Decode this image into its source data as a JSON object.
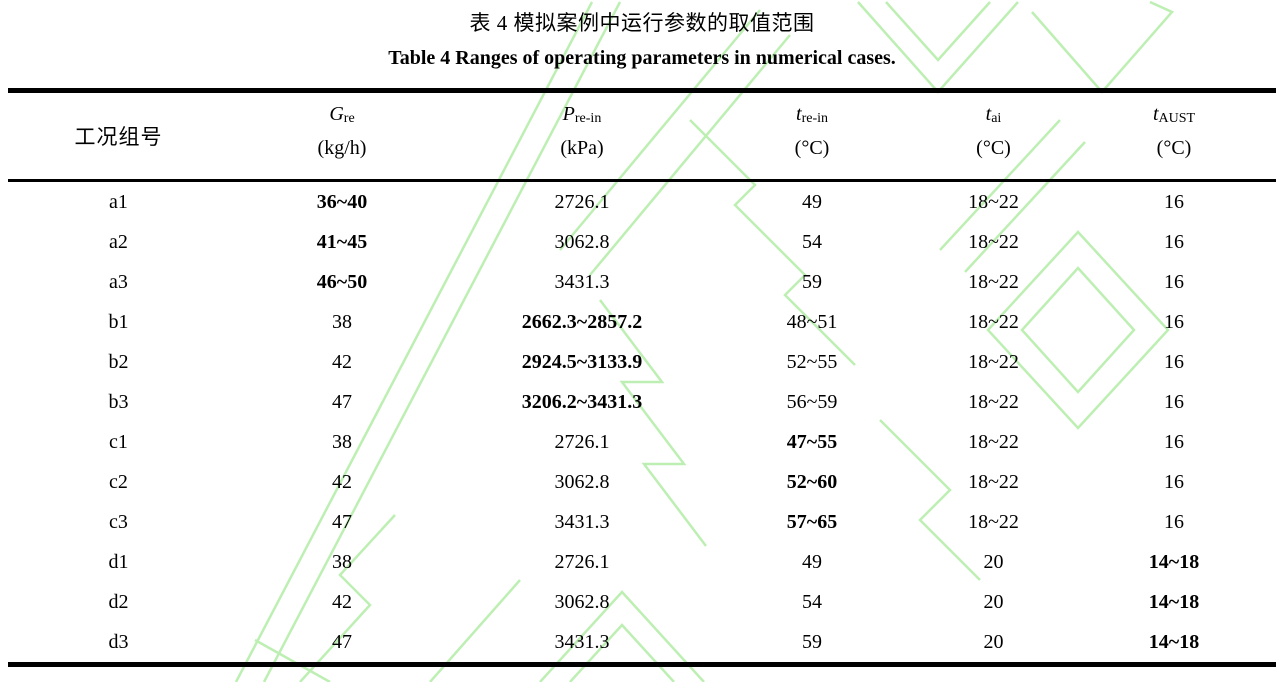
{
  "captions": {
    "zh": "表 4 模拟案例中运行参数的取值范围",
    "en": "Table 4 Ranges of operating parameters in numerical cases."
  },
  "table": {
    "columns": [
      {
        "label": "工况组号",
        "symbol": "",
        "sub": "",
        "unit": ""
      },
      {
        "label": "",
        "symbol": "G",
        "sub": "re",
        "unit": "(kg/h)"
      },
      {
        "label": "",
        "symbol": "P",
        "sub": "re-in",
        "unit": "(kPa)"
      },
      {
        "label": "",
        "symbol": "t",
        "sub": "re-in",
        "unit": "(°C)"
      },
      {
        "label": "",
        "symbol": "t",
        "sub": "ai",
        "unit": "(°C)"
      },
      {
        "label": "",
        "symbol": "t",
        "sub": "AUST",
        "unit": "(°C)"
      }
    ],
    "rows": [
      {
        "label": "a1",
        "values": [
          {
            "t": "36~40",
            "b": true
          },
          {
            "t": "2726.1",
            "b": false
          },
          {
            "t": "49",
            "b": false
          },
          {
            "t": "18~22",
            "b": false
          },
          {
            "t": "16",
            "b": false
          }
        ]
      },
      {
        "label": "a2",
        "values": [
          {
            "t": "41~45",
            "b": true
          },
          {
            "t": "3062.8",
            "b": false
          },
          {
            "t": "54",
            "b": false
          },
          {
            "t": "18~22",
            "b": false
          },
          {
            "t": "16",
            "b": false
          }
        ]
      },
      {
        "label": "a3",
        "values": [
          {
            "t": "46~50",
            "b": true
          },
          {
            "t": "3431.3",
            "b": false
          },
          {
            "t": "59",
            "b": false
          },
          {
            "t": "18~22",
            "b": false
          },
          {
            "t": "16",
            "b": false
          }
        ]
      },
      {
        "label": "b1",
        "values": [
          {
            "t": "38",
            "b": false
          },
          {
            "t": "2662.3~2857.2",
            "b": true
          },
          {
            "t": "48~51",
            "b": false
          },
          {
            "t": "18~22",
            "b": false
          },
          {
            "t": "16",
            "b": false
          }
        ]
      },
      {
        "label": "b2",
        "values": [
          {
            "t": "42",
            "b": false
          },
          {
            "t": "2924.5~3133.9",
            "b": true
          },
          {
            "t": "52~55",
            "b": false
          },
          {
            "t": "18~22",
            "b": false
          },
          {
            "t": "16",
            "b": false
          }
        ]
      },
      {
        "label": "b3",
        "values": [
          {
            "t": "47",
            "b": false
          },
          {
            "t": "3206.2~3431.3",
            "b": true
          },
          {
            "t": "56~59",
            "b": false
          },
          {
            "t": "18~22",
            "b": false
          },
          {
            "t": "16",
            "b": false
          }
        ]
      },
      {
        "label": "c1",
        "values": [
          {
            "t": "38",
            "b": false
          },
          {
            "t": "2726.1",
            "b": false
          },
          {
            "t": "47~55",
            "b": true
          },
          {
            "t": "18~22",
            "b": false
          },
          {
            "t": "16",
            "b": false
          }
        ]
      },
      {
        "label": "c2",
        "values": [
          {
            "t": "42",
            "b": false
          },
          {
            "t": "3062.8",
            "b": false
          },
          {
            "t": "52~60",
            "b": true
          },
          {
            "t": "18~22",
            "b": false
          },
          {
            "t": "16",
            "b": false
          }
        ]
      },
      {
        "label": "c3",
        "values": [
          {
            "t": "47",
            "b": false
          },
          {
            "t": "3431.3",
            "b": false
          },
          {
            "t": "57~65",
            "b": true
          },
          {
            "t": "18~22",
            "b": false
          },
          {
            "t": "16",
            "b": false
          }
        ]
      },
      {
        "label": "d1",
        "values": [
          {
            "t": "38",
            "b": false
          },
          {
            "t": "2726.1",
            "b": false
          },
          {
            "t": "49",
            "b": false
          },
          {
            "t": "20",
            "b": false
          },
          {
            "t": "14~18",
            "b": true
          }
        ]
      },
      {
        "label": "d2",
        "values": [
          {
            "t": "42",
            "b": false
          },
          {
            "t": "3062.8",
            "b": false
          },
          {
            "t": "54",
            "b": false
          },
          {
            "t": "20",
            "b": false
          },
          {
            "t": "14~18",
            "b": true
          }
        ]
      },
      {
        "label": "d3",
        "values": [
          {
            "t": "47",
            "b": false
          },
          {
            "t": "3431.3",
            "b": false
          },
          {
            "t": "59",
            "b": false
          },
          {
            "t": "20",
            "b": false
          },
          {
            "t": "14~18",
            "b": true
          }
        ]
      }
    ]
  },
  "watermark": {
    "color": "#bdefb3"
  },
  "colors": {
    "text": "#000000",
    "border": "#000000",
    "background": "#ffffff"
  }
}
